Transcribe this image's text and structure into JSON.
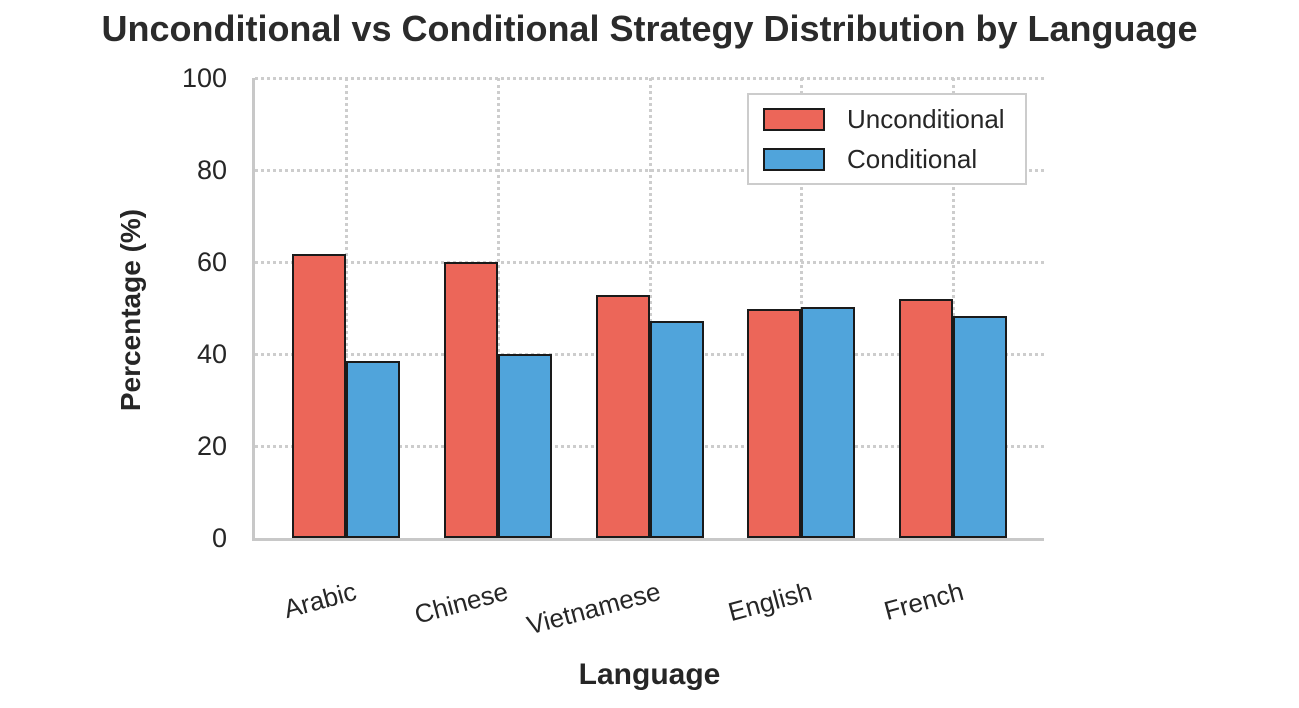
{
  "title": "Unconditional vs Conditional Strategy Distribution by Language",
  "chart_data": {
    "type": "bar",
    "title": "Unconditional vs Conditional Strategy Distribution by Language",
    "xlabel": "Language",
    "ylabel": "Percentage (%)",
    "categories": [
      "Arabic",
      "Chinese",
      "Vietnamese",
      "English",
      "French"
    ],
    "series": [
      {
        "name": "Unconditional",
        "color": "#EC6659",
        "values": [
          61.8,
          60.0,
          52.9,
          49.8,
          51.9
        ]
      },
      {
        "name": "Conditional",
        "color": "#50A4DB",
        "values": [
          38.5,
          40.0,
          47.2,
          50.2,
          48.2
        ]
      }
    ],
    "ylim": [
      0,
      100
    ],
    "yticks": [
      "0",
      "20",
      "40",
      "60",
      "80",
      "100"
    ],
    "ytick_values": [
      0,
      20,
      40,
      60,
      80,
      100
    ],
    "grid": true,
    "grid_style": "dotted",
    "legend_position": "upper right",
    "colors": {
      "bar_edge": "#1a1a1a",
      "grid": "#cdcdcd",
      "spine": "#c8c8c8",
      "text": "#262626",
      "title_text": "#2b2b2b",
      "legend_border": "#cccccc"
    }
  }
}
